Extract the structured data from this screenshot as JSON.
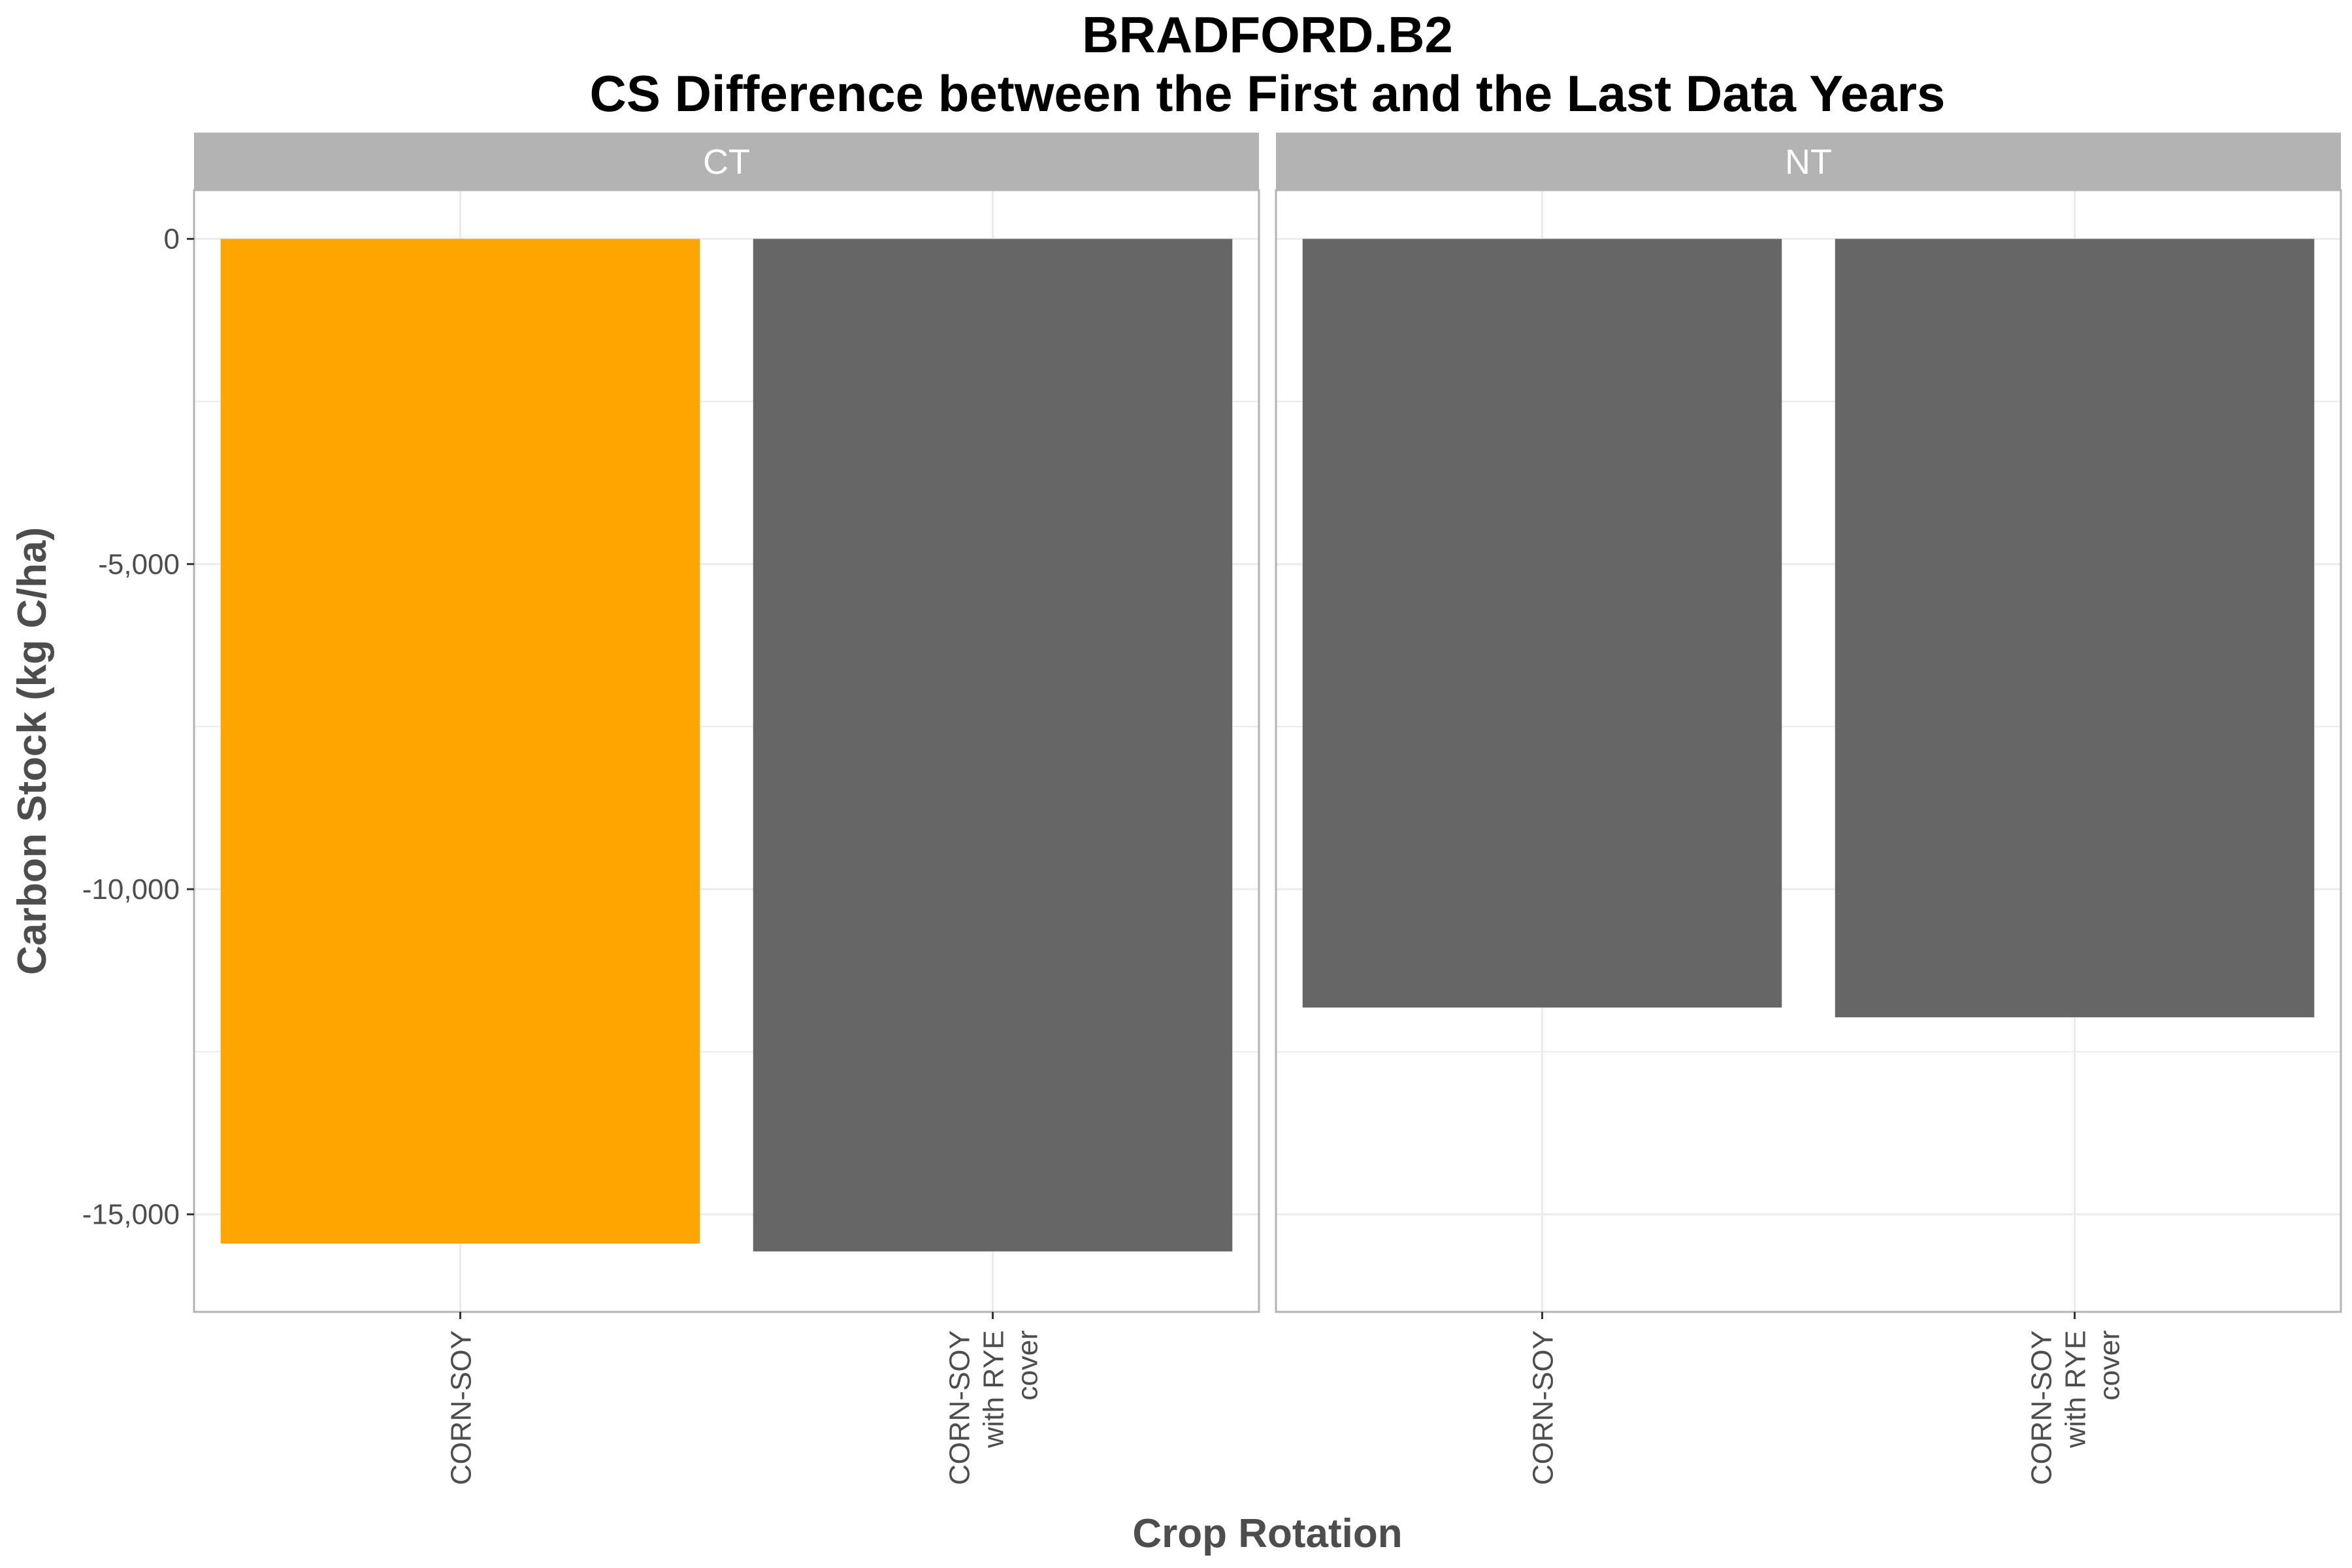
{
  "chart_data": {
    "type": "bar",
    "title": "BRADFORD.B2",
    "subtitle": "CS Difference between the First and the Last Data Years",
    "xlabel": "Crop Rotation",
    "ylabel": "Carbon Stock (kg C/ha)",
    "ylim": [
      -16500,
      750
    ],
    "yticks": [
      0,
      -5000,
      -10000,
      -15000
    ],
    "ytick_labels": [
      "0",
      "-5,000",
      "-10,000",
      "-15,000"
    ],
    "grid": true,
    "legend": "none",
    "categories": [
      [
        "CORN-SOY"
      ],
      [
        "CORN-SOY",
        "with RYE",
        "cover"
      ]
    ],
    "panels": [
      {
        "name": "CT",
        "values": [
          -15450,
          -15570
        ],
        "colors": [
          "#FFA500",
          "#666666"
        ]
      },
      {
        "name": "NT",
        "values": [
          -11820,
          -11970
        ],
        "colors": [
          "#666666",
          "#666666"
        ]
      }
    ]
  },
  "colors": {
    "highlight": "#FFA500",
    "bar": "#666666",
    "strip": "#B3B3B3",
    "panel_border": "#B3B3B3",
    "grid": "#EBEBEB"
  }
}
